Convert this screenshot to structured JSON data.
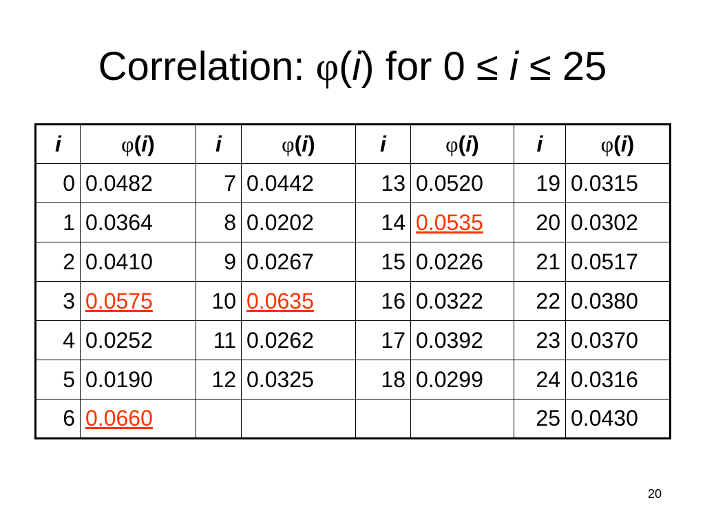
{
  "slide": {
    "title": {
      "prefix": "Correlation: ",
      "phi": "φ",
      "open_paren": "(",
      "arg": "i",
      "close_paren_text": ") for 0 ≤ ",
      "var": "i",
      "suffix": " ≤ 25"
    },
    "page_number": "20"
  },
  "table": {
    "header": {
      "index_label": "i",
      "phi_symbol": "φ",
      "phi_open": "(",
      "phi_arg": "i",
      "phi_close": ")"
    },
    "rows": [
      [
        {
          "i": "0",
          "v": "0.0482",
          "hl": false
        },
        {
          "i": "7",
          "v": "0.0442",
          "hl": false
        },
        {
          "i": "13",
          "v": "0.0520",
          "hl": false
        },
        {
          "i": "19",
          "v": "0.0315",
          "hl": false
        }
      ],
      [
        {
          "i": "1",
          "v": "0.0364",
          "hl": false
        },
        {
          "i": "8",
          "v": "0.0202",
          "hl": false
        },
        {
          "i": "14",
          "v": "0.0535",
          "hl": true
        },
        {
          "i": "20",
          "v": "0.0302",
          "hl": false
        }
      ],
      [
        {
          "i": "2",
          "v": "0.0410",
          "hl": false
        },
        {
          "i": "9",
          "v": "0.0267",
          "hl": false
        },
        {
          "i": "15",
          "v": "0.0226",
          "hl": false
        },
        {
          "i": "21",
          "v": "0.0517",
          "hl": false
        }
      ],
      [
        {
          "i": "3",
          "v": "0.0575",
          "hl": true
        },
        {
          "i": "10",
          "v": "0.0635",
          "hl": true
        },
        {
          "i": "16",
          "v": "0.0322",
          "hl": false
        },
        {
          "i": "22",
          "v": "0.0380",
          "hl": false
        }
      ],
      [
        {
          "i": "4",
          "v": "0.0252",
          "hl": false
        },
        {
          "i": "11",
          "v": "0.0262",
          "hl": false
        },
        {
          "i": "17",
          "v": "0.0392",
          "hl": false
        },
        {
          "i": "23",
          "v": "0.0370",
          "hl": false
        }
      ],
      [
        {
          "i": "5",
          "v": "0.0190",
          "hl": false
        },
        {
          "i": "12",
          "v": "0.0325",
          "hl": false
        },
        {
          "i": "18",
          "v": "0.0299",
          "hl": false
        },
        {
          "i": "24",
          "v": "0.0316",
          "hl": false
        }
      ],
      [
        {
          "i": "6",
          "v": "0.0660",
          "hl": true
        },
        {
          "i": "",
          "v": "",
          "hl": false
        },
        {
          "i": "",
          "v": "",
          "hl": false
        },
        {
          "i": "25",
          "v": "0.0430",
          "hl": false
        }
      ]
    ],
    "highlight_color": "#ff3300"
  }
}
